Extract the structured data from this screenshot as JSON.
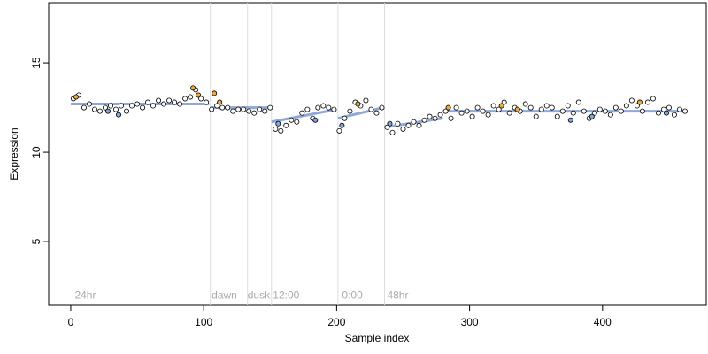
{
  "chart_data": {
    "type": "scatter",
    "xlabel": "Sample index",
    "ylabel": "Expression",
    "xlim": [
      -16.6,
      478
    ],
    "ylim": [
      1.44,
      18.37
    ],
    "xticks": [
      0,
      100,
      200,
      300,
      400
    ],
    "yticks": [
      5,
      10,
      15
    ],
    "grid": false,
    "vlines": [
      105,
      133,
      151,
      201,
      236
    ],
    "annotations": [
      {
        "text": "24hr",
        "x": 3,
        "y": 2
      },
      {
        "text": "dawn",
        "x": 106,
        "y": 2
      },
      {
        "text": "dusk",
        "x": 133,
        "y": 2
      },
      {
        "text": "12:00",
        "x": 152,
        "y": 2
      },
      {
        "text": "0:00",
        "x": 204,
        "y": 2
      },
      {
        "text": "48hr",
        "x": 238,
        "y": 2
      }
    ],
    "fit": {
      "color": "#8fa8d8",
      "segments": [
        {
          "x": [
            0,
            104
          ],
          "values": [
            12.7,
            12.7
          ]
        },
        {
          "x": [
            105,
            150
          ],
          "values": [
            12.5,
            12.5
          ]
        },
        {
          "x": [
            151,
            200
          ],
          "values": [
            11.7,
            12.4
          ]
        },
        {
          "x": [
            201,
            235
          ],
          "values": [
            11.9,
            12.5
          ]
        },
        {
          "x": [
            236,
            280
          ],
          "values": [
            11.4,
            11.9
          ]
        },
        {
          "x": [
            281,
            462
          ],
          "values": [
            12.3,
            12.3
          ]
        }
      ]
    },
    "series": [
      {
        "color": "#ffffff",
        "x": [
          2,
          6,
          10,
          14,
          18,
          22,
          26,
          30,
          34,
          38,
          42,
          46,
          50,
          54,
          58,
          62,
          66,
          70,
          74,
          78,
          82,
          86,
          90,
          94,
          98,
          102,
          106,
          110,
          114,
          118,
          122,
          126,
          130,
          134,
          138,
          142,
          146,
          150,
          154,
          158,
          162,
          166,
          170,
          174,
          178,
          182,
          186,
          190,
          194,
          198,
          202,
          206,
          210,
          214,
          218,
          222,
          226,
          230,
          234,
          238,
          242,
          246,
          250,
          254,
          258,
          262,
          266,
          270,
          274,
          278,
          282,
          286,
          290,
          294,
          298,
          302,
          306,
          310,
          314,
          318,
          322,
          326,
          330,
          334,
          338,
          342,
          346,
          350,
          354,
          358,
          362,
          366,
          370,
          374,
          378,
          382,
          386,
          390,
          394,
          398,
          402,
          406,
          410,
          414,
          418,
          422,
          426,
          430,
          434,
          438,
          442,
          446,
          450,
          454,
          458,
          462
        ],
        "values": [
          13.0,
          13.2,
          12.5,
          12.7,
          12.4,
          12.3,
          12.5,
          12.6,
          12.4,
          12.6,
          12.3,
          12.6,
          12.7,
          12.5,
          12.8,
          12.6,
          12.9,
          12.7,
          12.9,
          12.8,
          12.7,
          13.0,
          13.1,
          13.5,
          13.0,
          12.8,
          12.4,
          12.6,
          12.5,
          12.5,
          12.3,
          12.4,
          12.4,
          12.3,
          12.2,
          12.4,
          12.3,
          12.5,
          11.3,
          11.2,
          11.5,
          11.8,
          11.7,
          12.2,
          12.4,
          11.9,
          12.5,
          12.6,
          12.5,
          12.4,
          11.2,
          11.9,
          12.3,
          12.8,
          12.6,
          12.9,
          12.4,
          12.2,
          12.5,
          11.4,
          11.1,
          11.6,
          11.3,
          11.5,
          11.7,
          11.5,
          11.8,
          12.0,
          11.9,
          12.1,
          12.3,
          11.9,
          12.5,
          12.2,
          12.3,
          12.0,
          12.5,
          12.3,
          12.1,
          12.6,
          12.4,
          12.8,
          12.2,
          12.5,
          12.3,
          12.7,
          12.5,
          12.0,
          12.4,
          12.6,
          12.5,
          12.0,
          12.3,
          12.6,
          12.2,
          12.8,
          12.3,
          11.9,
          12.2,
          12.4,
          12.3,
          12.1,
          12.5,
          12.3,
          12.6,
          12.9,
          12.6,
          12.3,
          12.8,
          13.0,
          12.2,
          12.4,
          12.5,
          12.1,
          12.4,
          12.3
        ]
      },
      {
        "color": "#f2a93b",
        "x": [
          4,
          92,
          96,
          108,
          112,
          216,
          284,
          324,
          336,
          428
        ],
        "values": [
          13.1,
          13.6,
          13.2,
          13.3,
          12.8,
          12.7,
          12.5,
          12.6,
          12.4,
          12.8
        ]
      },
      {
        "color": "#7fa7e0",
        "x": [
          28,
          36,
          156,
          184,
          204,
          240,
          376,
          392,
          448
        ],
        "values": [
          12.3,
          12.1,
          11.6,
          11.8,
          11.5,
          11.6,
          11.8,
          12.0,
          12.2
        ]
      }
    ]
  }
}
